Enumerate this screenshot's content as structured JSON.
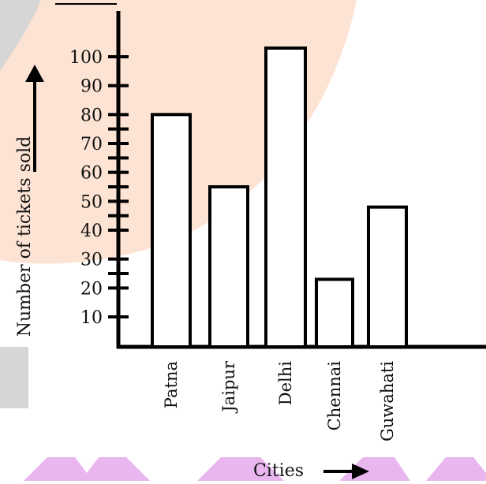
{
  "chart_data": {
    "type": "bar",
    "categories": [
      "Patna",
      "Jaipur",
      "Delhi",
      "Chennai",
      "Guwahati"
    ],
    "values": [
      80,
      55,
      103,
      23,
      48
    ],
    "title": "",
    "xlabel": "Cities",
    "ylabel": "Number of tickets sold",
    "ylim": [
      0,
      110
    ],
    "y_tick_labels": [
      {
        "value": 10,
        "label": "10"
      },
      {
        "value": 20,
        "label": "20"
      },
      {
        "value": 30,
        "label": "30"
      },
      {
        "value": 40,
        "label": "40"
      },
      {
        "value": 50,
        "label": "50"
      },
      {
        "value": 60,
        "label": "60"
      },
      {
        "value": 70,
        "label": "70"
      },
      {
        "value": 80,
        "label": "80"
      },
      {
        "value": 90,
        "label": "90"
      },
      {
        "value": 100,
        "label": "100"
      }
    ],
    "y_tick_marks": [
      10,
      20,
      25,
      30,
      40,
      45,
      50,
      55,
      60,
      65,
      70,
      75,
      80,
      90,
      100
    ],
    "grid": false,
    "legend": "none"
  },
  "colors": {
    "background_blob": "#fde3d3",
    "watermark": "#e9b6f0",
    "gray_band": "#d6d6d6",
    "axis": "#000000"
  }
}
